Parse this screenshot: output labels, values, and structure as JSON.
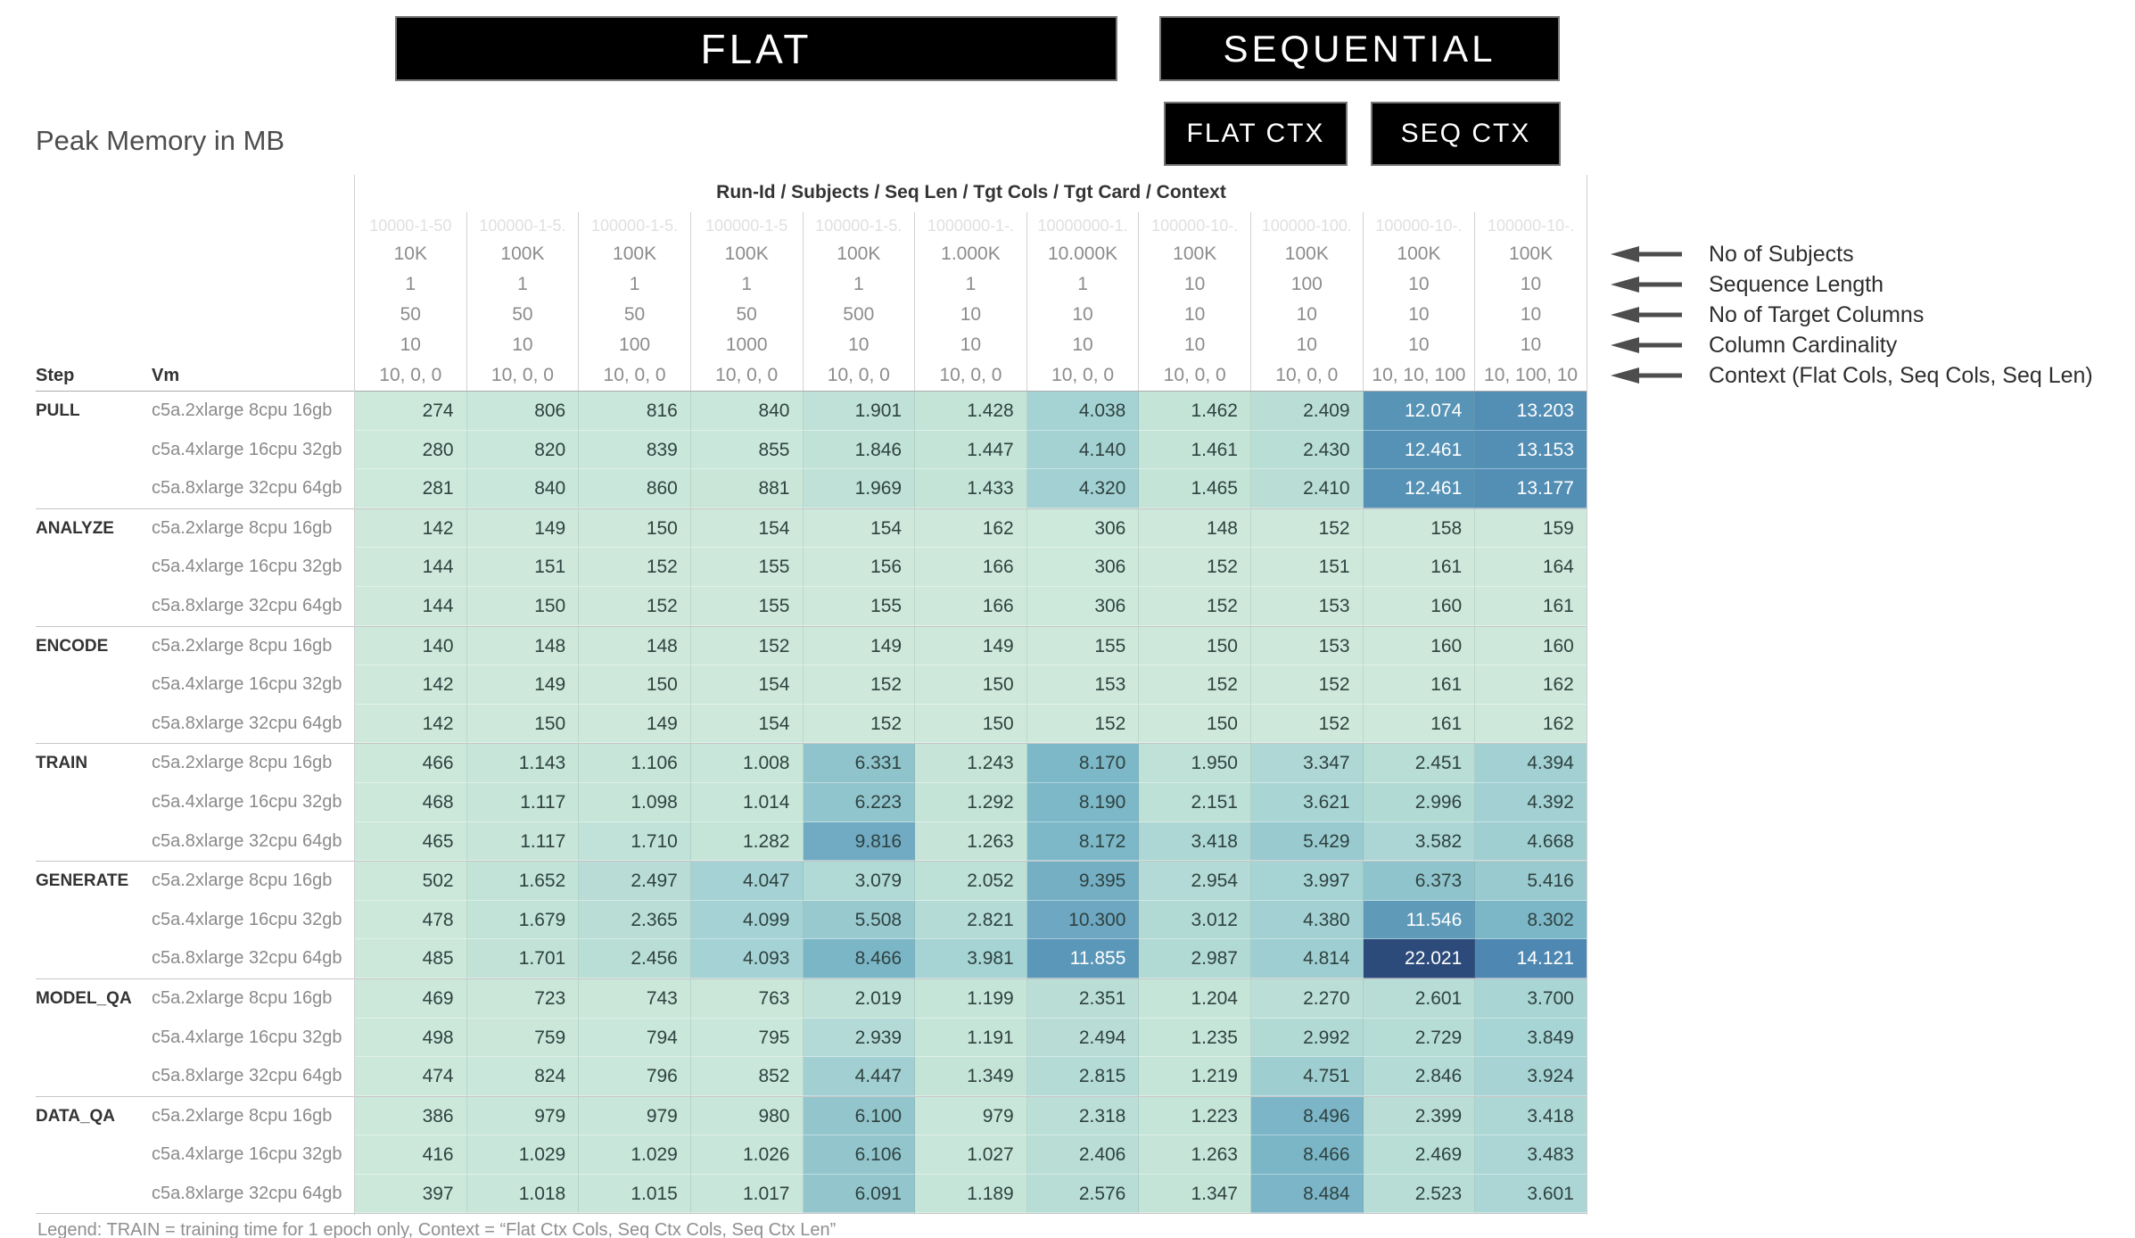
{
  "banners": {
    "flat": "FLAT",
    "sequential": "SEQUENTIAL",
    "flat_ctx": "FLAT CTX",
    "seq_ctx": "SEQ CTX"
  },
  "annotations": [
    "No of Subjects",
    "Sequence Length",
    "No of Target Columns",
    "Column Cardinality",
    "Context (Flat Cols, Seq Cols, Seq Len)"
  ],
  "legend": "Legend: TRAIN = training time for 1 epoch only, Context = “Flat Ctx Cols, Seq Ctx Cols, Seq Ctx Len”",
  "colors": {
    "text_dark": "#2f4240",
    "text_light": "#ffffff",
    "white_text_threshold": 11000,
    "max_value": 22021,
    "scale_stops": [
      [
        0.0,
        "#cfeadd"
      ],
      [
        0.045,
        "#c8e6d9"
      ],
      [
        0.09,
        "#bfe1d7"
      ],
      [
        0.18,
        "#a6d3d4"
      ],
      [
        0.28,
        "#92c5cd"
      ],
      [
        0.37,
        "#7db8c8"
      ],
      [
        0.46,
        "#6fa9c2"
      ],
      [
        0.55,
        "#5894b6"
      ],
      [
        0.65,
        "#4d87b2"
      ],
      [
        0.8,
        "#3d689a"
      ],
      [
        1.0,
        "#2c4a7a"
      ]
    ]
  },
  "chart_data": {
    "type": "heatmap",
    "title": "Peak Memory in MB",
    "unit": "MB",
    "column_header_label": "Run-Id / Subjects / Seq Len / Tgt Cols / Tgt Card / Context",
    "row_header_labels": {
      "step": "Step",
      "vm": "Vm"
    },
    "columns": [
      {
        "run_id": "10000-1-50",
        "subjects": "10K",
        "seq_len": "1",
        "tgt_cols": "50",
        "cardinality": "10",
        "context": "10, 0, 0"
      },
      {
        "run_id": "100000-1-5.",
        "subjects": "100K",
        "seq_len": "1",
        "tgt_cols": "50",
        "cardinality": "10",
        "context": "10, 0, 0"
      },
      {
        "run_id": "100000-1-5.",
        "subjects": "100K",
        "seq_len": "1",
        "tgt_cols": "50",
        "cardinality": "100",
        "context": "10, 0, 0"
      },
      {
        "run_id": "100000-1-5",
        "subjects": "100K",
        "seq_len": "1",
        "tgt_cols": "50",
        "cardinality": "1000",
        "context": "10, 0, 0"
      },
      {
        "run_id": "100000-1-5.",
        "subjects": "100K",
        "seq_len": "1",
        "tgt_cols": "500",
        "cardinality": "10",
        "context": "10, 0, 0"
      },
      {
        "run_id": "1000000-1-.",
        "subjects": "1.000K",
        "seq_len": "1",
        "tgt_cols": "10",
        "cardinality": "10",
        "context": "10, 0, 0"
      },
      {
        "run_id": "10000000-1.",
        "subjects": "10.000K",
        "seq_len": "1",
        "tgt_cols": "10",
        "cardinality": "10",
        "context": "10, 0, 0"
      },
      {
        "run_id": "100000-10-.",
        "subjects": "100K",
        "seq_len": "10",
        "tgt_cols": "10",
        "cardinality": "10",
        "context": "10, 0, 0"
      },
      {
        "run_id": "100000-100.",
        "subjects": "100K",
        "seq_len": "100",
        "tgt_cols": "10",
        "cardinality": "10",
        "context": "10, 0, 0"
      },
      {
        "run_id": "100000-10-.",
        "subjects": "100K",
        "seq_len": "10",
        "tgt_cols": "10",
        "cardinality": "10",
        "context": "10, 10, 100"
      },
      {
        "run_id": "100000-10-.",
        "subjects": "100K",
        "seq_len": "10",
        "tgt_cols": "10",
        "cardinality": "10",
        "context": "10, 100, 10"
      }
    ],
    "groups": [
      {
        "step": "PULL",
        "rows": [
          {
            "vm": "c5a.2xlarge 8cpu 16gb",
            "values": [
              "274",
              "806",
              "816",
              "840",
              "1.901",
              "1.428",
              "4.038",
              "1.462",
              "2.409",
              "12.074",
              "13.203"
            ]
          },
          {
            "vm": "c5a.4xlarge 16cpu 32gb",
            "values": [
              "280",
              "820",
              "839",
              "855",
              "1.846",
              "1.447",
              "4.140",
              "1.461",
              "2.430",
              "12.461",
              "13.153"
            ]
          },
          {
            "vm": "c5a.8xlarge 32cpu 64gb",
            "values": [
              "281",
              "840",
              "860",
              "881",
              "1.969",
              "1.433",
              "4.320",
              "1.465",
              "2.410",
              "12.461",
              "13.177"
            ]
          }
        ]
      },
      {
        "step": "ANALYZE",
        "rows": [
          {
            "vm": "c5a.2xlarge 8cpu 16gb",
            "values": [
              "142",
              "149",
              "150",
              "154",
              "154",
              "162",
              "306",
              "148",
              "152",
              "158",
              "159"
            ]
          },
          {
            "vm": "c5a.4xlarge 16cpu 32gb",
            "values": [
              "144",
              "151",
              "152",
              "155",
              "156",
              "166",
              "306",
              "152",
              "151",
              "161",
              "164"
            ]
          },
          {
            "vm": "c5a.8xlarge 32cpu 64gb",
            "values": [
              "144",
              "150",
              "152",
              "155",
              "155",
              "166",
              "306",
              "152",
              "153",
              "160",
              "161"
            ]
          }
        ]
      },
      {
        "step": "ENCODE",
        "rows": [
          {
            "vm": "c5a.2xlarge 8cpu 16gb",
            "values": [
              "140",
              "148",
              "148",
              "152",
              "149",
              "149",
              "155",
              "150",
              "153",
              "160",
              "160"
            ]
          },
          {
            "vm": "c5a.4xlarge 16cpu 32gb",
            "values": [
              "142",
              "149",
              "150",
              "154",
              "152",
              "150",
              "153",
              "152",
              "152",
              "161",
              "162"
            ]
          },
          {
            "vm": "c5a.8xlarge 32cpu 64gb",
            "values": [
              "142",
              "150",
              "149",
              "154",
              "152",
              "150",
              "152",
              "150",
              "152",
              "161",
              "162"
            ]
          }
        ]
      },
      {
        "step": "TRAIN",
        "rows": [
          {
            "vm": "c5a.2xlarge 8cpu 16gb",
            "values": [
              "466",
              "1.143",
              "1.106",
              "1.008",
              "6.331",
              "1.243",
              "8.170",
              "1.950",
              "3.347",
              "2.451",
              "4.394"
            ]
          },
          {
            "vm": "c5a.4xlarge 16cpu 32gb",
            "values": [
              "468",
              "1.117",
              "1.098",
              "1.014",
              "6.223",
              "1.292",
              "8.190",
              "2.151",
              "3.621",
              "2.996",
              "4.392"
            ]
          },
          {
            "vm": "c5a.8xlarge 32cpu 64gb",
            "values": [
              "465",
              "1.117",
              "1.710",
              "1.282",
              "9.816",
              "1.263",
              "8.172",
              "3.418",
              "5.429",
              "3.582",
              "4.668"
            ]
          }
        ]
      },
      {
        "step": "GENERATE",
        "rows": [
          {
            "vm": "c5a.2xlarge 8cpu 16gb",
            "values": [
              "502",
              "1.652",
              "2.497",
              "4.047",
              "3.079",
              "2.052",
              "9.395",
              "2.954",
              "3.997",
              "6.373",
              "5.416"
            ]
          },
          {
            "vm": "c5a.4xlarge 16cpu 32gb",
            "values": [
              "478",
              "1.679",
              "2.365",
              "4.099",
              "5.508",
              "2.821",
              "10.300",
              "3.012",
              "4.380",
              "11.546",
              "8.302"
            ]
          },
          {
            "vm": "c5a.8xlarge 32cpu 64gb",
            "values": [
              "485",
              "1.701",
              "2.456",
              "4.093",
              "8.466",
              "3.981",
              "11.855",
              "2.987",
              "4.814",
              "22.021",
              "14.121"
            ]
          }
        ]
      },
      {
        "step": "MODEL_QA",
        "rows": [
          {
            "vm": "c5a.2xlarge 8cpu 16gb",
            "values": [
              "469",
              "723",
              "743",
              "763",
              "2.019",
              "1.199",
              "2.351",
              "1.204",
              "2.270",
              "2.601",
              "3.700"
            ]
          },
          {
            "vm": "c5a.4xlarge 16cpu 32gb",
            "values": [
              "498",
              "759",
              "794",
              "795",
              "2.939",
              "1.191",
              "2.494",
              "1.235",
              "2.992",
              "2.729",
              "3.849"
            ]
          },
          {
            "vm": "c5a.8xlarge 32cpu 64gb",
            "values": [
              "474",
              "824",
              "796",
              "852",
              "4.447",
              "1.349",
              "2.815",
              "1.219",
              "4.751",
              "2.846",
              "3.924"
            ]
          }
        ]
      },
      {
        "step": "DATA_QA",
        "rows": [
          {
            "vm": "c5a.2xlarge 8cpu 16gb",
            "values": [
              "386",
              "979",
              "979",
              "980",
              "6.100",
              "979",
              "2.318",
              "1.223",
              "8.496",
              "2.399",
              "3.418"
            ]
          },
          {
            "vm": "c5a.4xlarge 16cpu 32gb",
            "values": [
              "416",
              "1.029",
              "1.029",
              "1.026",
              "6.106",
              "1.027",
              "2.406",
              "1.263",
              "8.466",
              "2.469",
              "3.483"
            ]
          },
          {
            "vm": "c5a.8xlarge 32cpu 64gb",
            "values": [
              "397",
              "1.018",
              "1.015",
              "1.017",
              "6.091",
              "1.189",
              "2.576",
              "1.347",
              "8.484",
              "2.523",
              "3.601"
            ]
          }
        ]
      }
    ]
  }
}
